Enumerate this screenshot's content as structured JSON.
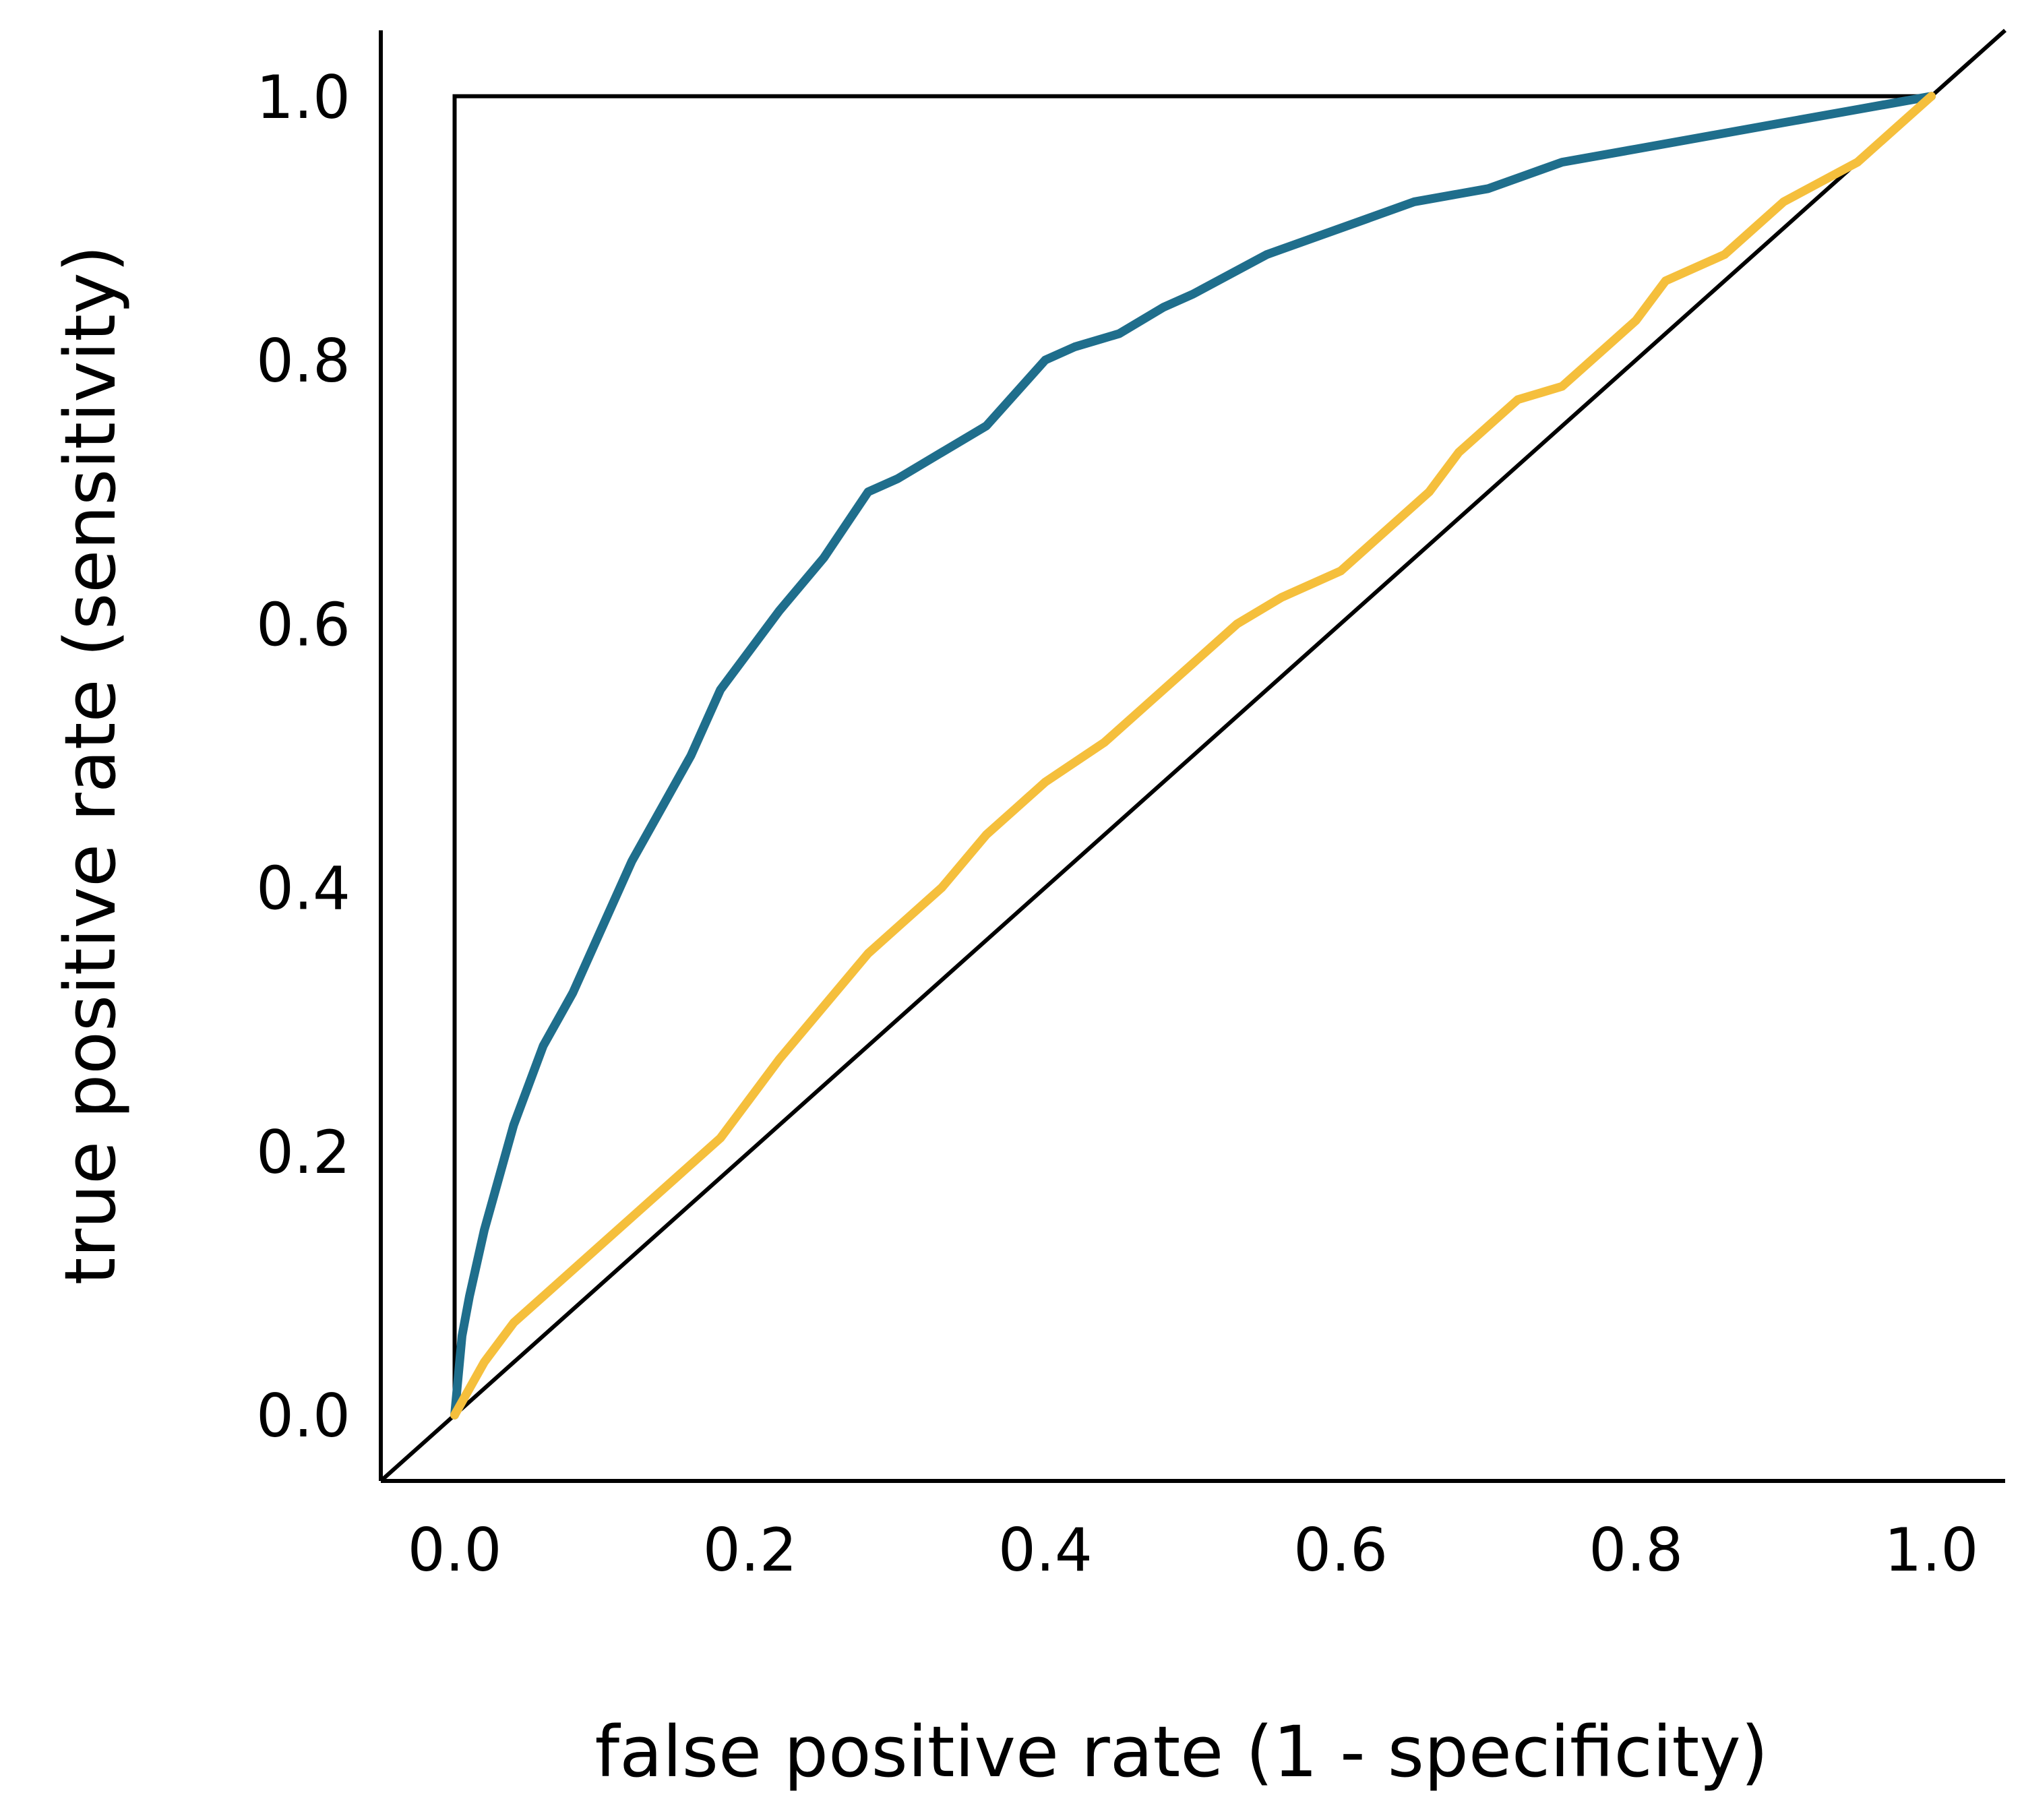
{
  "chart_data": {
    "type": "line",
    "title": "",
    "xlabel": "false positive rate (1 - specificity)",
    "ylabel": "true positive rate (sensitivity)",
    "xlim": [
      -0.05,
      1.05
    ],
    "ylim": [
      -0.05,
      1.05
    ],
    "x_ticks": [
      "0.0",
      "0.2",
      "0.4",
      "0.6",
      "0.8",
      "1.0"
    ],
    "y_ticks": [
      "0.0",
      "0.2",
      "0.4",
      "0.6",
      "0.8",
      "1.0"
    ],
    "grid": false,
    "legend": "none",
    "reference_lines": [
      {
        "kind": "perfect-classifier",
        "x": [
          0,
          0,
          1
        ],
        "y": [
          0,
          1,
          1
        ],
        "color": "#000000"
      },
      {
        "kind": "chance-diagonal",
        "x": [
          -0.05,
          1.05
        ],
        "y": [
          -0.05,
          1.05
        ],
        "color": "#000000"
      }
    ],
    "series": [
      {
        "color": "#1f6e8c",
        "x": [
          0.0,
          0.005,
          0.01,
          0.02,
          0.03,
          0.04,
          0.05,
          0.06,
          0.07,
          0.08,
          0.1,
          0.12,
          0.14,
          0.16,
          0.18,
          0.2,
          0.22,
          0.25,
          0.28,
          0.3,
          0.33,
          0.36,
          0.4,
          0.42,
          0.45,
          0.48,
          0.5,
          0.55,
          0.6,
          0.65,
          0.7,
          0.75,
          0.8,
          0.85,
          0.9,
          0.95,
          1.0
        ],
        "y": [
          0.0,
          0.06,
          0.09,
          0.14,
          0.18,
          0.22,
          0.25,
          0.28,
          0.3,
          0.32,
          0.37,
          0.42,
          0.46,
          0.5,
          0.55,
          0.58,
          0.61,
          0.65,
          0.7,
          0.71,
          0.73,
          0.75,
          0.8,
          0.81,
          0.82,
          0.84,
          0.85,
          0.88,
          0.9,
          0.92,
          0.93,
          0.95,
          0.96,
          0.97,
          0.98,
          0.99,
          1.0
        ]
      },
      {
        "color": "#f5bf3c",
        "x": [
          0.0,
          0.02,
          0.04,
          0.06,
          0.08,
          0.1,
          0.12,
          0.15,
          0.18,
          0.2,
          0.22,
          0.25,
          0.28,
          0.3,
          0.33,
          0.36,
          0.38,
          0.4,
          0.44,
          0.47,
          0.5,
          0.53,
          0.56,
          0.6,
          0.63,
          0.66,
          0.68,
          0.7,
          0.72,
          0.75,
          0.78,
          0.8,
          0.82,
          0.86,
          0.88,
          0.9,
          0.95,
          1.0
        ],
        "y": [
          0.0,
          0.04,
          0.07,
          0.09,
          0.11,
          0.13,
          0.15,
          0.18,
          0.21,
          0.24,
          0.27,
          0.31,
          0.35,
          0.37,
          0.4,
          0.44,
          0.46,
          0.48,
          0.51,
          0.54,
          0.57,
          0.6,
          0.62,
          0.64,
          0.67,
          0.7,
          0.73,
          0.75,
          0.77,
          0.78,
          0.81,
          0.83,
          0.86,
          0.88,
          0.9,
          0.92,
          0.95,
          1.0
        ]
      }
    ]
  }
}
